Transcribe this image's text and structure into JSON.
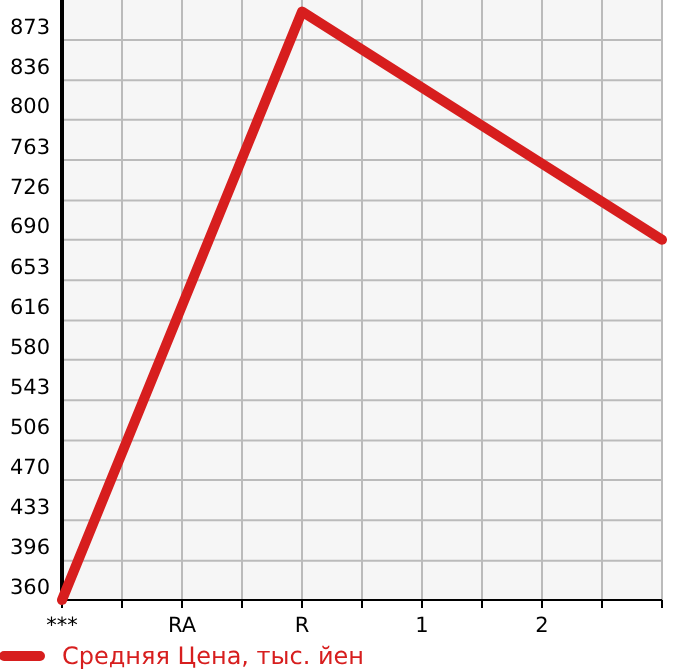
{
  "chart_data": {
    "type": "line",
    "categories": [
      "***",
      "RA",
      "R",
      "1",
      "2",
      null
    ],
    "series": [
      {
        "name": "Средняя Цена, тыс. йен",
        "color": "#d71e1e",
        "values": [
          360,
          null,
          899,
          null,
          null,
          690
        ]
      }
    ],
    "ylim": [
      360,
      909.6
    ],
    "yticks": [
      360,
      396,
      433,
      470,
      506,
      543,
      580,
      616,
      653,
      690,
      726,
      763,
      800,
      836,
      873
    ],
    "grid": true,
    "legend": "bottom",
    "marker": "none",
    "line_style": "solid"
  }
}
